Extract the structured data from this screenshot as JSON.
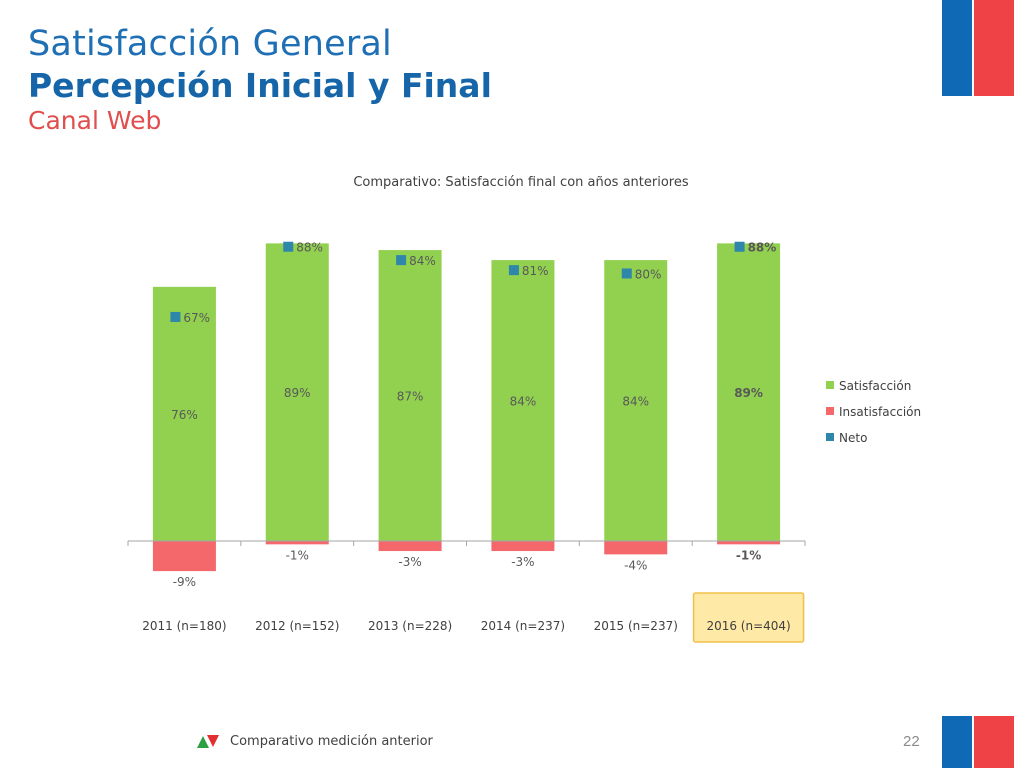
{
  "header": {
    "title": "Satisfacción General",
    "subtitle": "Percepción Inicial y Final",
    "channel": "Canal Web"
  },
  "footer": {
    "comparison_label": "Comparativo medición anterior",
    "page_number": "22",
    "arrow_up_color": "#2ea043",
    "arrow_down_color": "#e03030"
  },
  "brand_colors": {
    "blue": "#0f69b4",
    "red": "#ef4247"
  },
  "chart_data": {
    "type": "bar",
    "stacked": true,
    "title": "Comparativo: Satisfacción final con años anteriores",
    "categories": [
      "2011 (n=180)",
      "2012 (n=152)",
      "2013 (n=228)",
      "2014 (n=237)",
      "2015 (n=237)",
      "2016 (n=404)"
    ],
    "highlighted_category": "2016 (n=404)",
    "series": [
      {
        "name": "Satisfacción",
        "type": "bar",
        "color": "#92d050",
        "values": [
          76,
          89,
          87,
          84,
          84,
          89
        ],
        "labels": [
          "76%",
          "89%",
          "87%",
          "84%",
          "84%",
          "89%"
        ]
      },
      {
        "name": "Insatisfacción",
        "type": "bar",
        "color": "#f4686c",
        "values": [
          -9,
          -1,
          -3,
          -3,
          -4,
          -1
        ],
        "labels": [
          "-9%",
          "-1%",
          "-3%",
          "-3%",
          "-4%",
          "-1%"
        ]
      },
      {
        "name": "Neto",
        "type": "marker",
        "color": "#2e86ab",
        "values": [
          67,
          88,
          84,
          81,
          80,
          88
        ],
        "labels": [
          "67%",
          "88%",
          "84%",
          "81%",
          "80%",
          "88%"
        ]
      }
    ],
    "ylim": [
      -10,
      90
    ],
    "grid": false,
    "legend_position": "right"
  }
}
